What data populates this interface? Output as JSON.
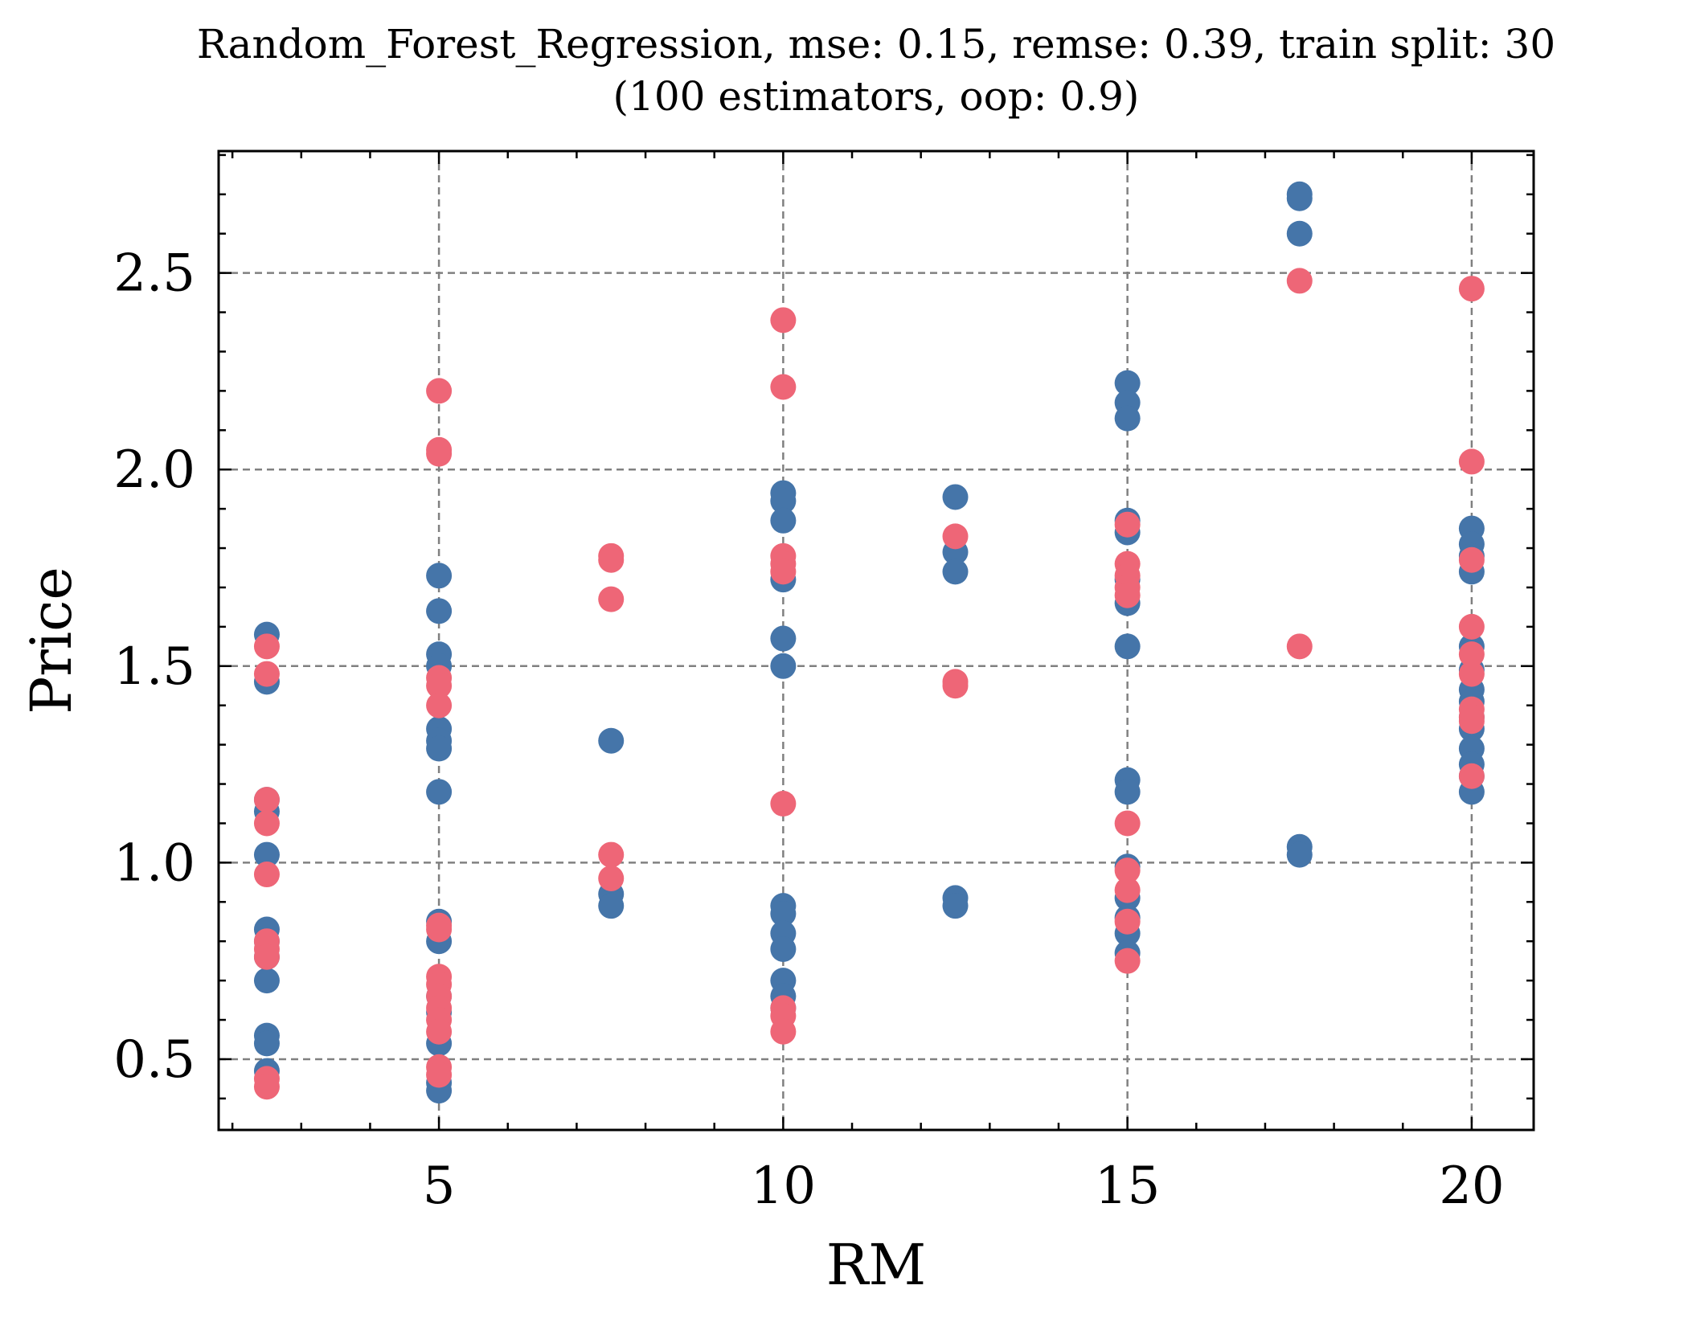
{
  "chart_data": {
    "type": "scatter",
    "title": "Random_Forest_Regression, mse: 0.15, remse: 0.39, train split: 30",
    "subtitle": "(100 estimators, oop: 0.9)",
    "xlabel": "RM",
    "ylabel": "Price",
    "xlim": [
      1.8,
      20.9
    ],
    "ylim": [
      0.32,
      2.81
    ],
    "x_ticks": [
      5,
      10,
      15,
      20
    ],
    "x_tick_labels": [
      "5",
      "10",
      "15",
      "20"
    ],
    "y_ticks": [
      0.5,
      1.0,
      1.5,
      2.0,
      2.5
    ],
    "y_tick_labels": [
      "0.5",
      "1.0",
      "1.5",
      "2.0",
      "2.5"
    ],
    "grid": true,
    "legend": "none",
    "series": [
      {
        "color": "#4575a9",
        "points": [
          [
            2.5,
            1.58
          ],
          [
            2.5,
            1.46
          ],
          [
            2.5,
            1.16
          ],
          [
            2.5,
            1.13
          ],
          [
            2.5,
            1.02
          ],
          [
            2.5,
            0.83
          ],
          [
            2.5,
            0.8
          ],
          [
            2.5,
            0.76
          ],
          [
            2.5,
            0.7
          ],
          [
            2.5,
            0.56
          ],
          [
            2.5,
            0.54
          ],
          [
            2.5,
            0.47
          ],
          [
            5,
            1.73
          ],
          [
            5,
            1.64
          ],
          [
            5,
            1.53
          ],
          [
            5,
            1.5
          ],
          [
            5,
            1.34
          ],
          [
            5,
            1.31
          ],
          [
            5,
            1.29
          ],
          [
            5,
            1.18
          ],
          [
            5,
            0.85
          ],
          [
            5,
            0.8
          ],
          [
            5,
            0.66
          ],
          [
            5,
            0.62
          ],
          [
            5,
            0.54
          ],
          [
            5,
            0.44
          ],
          [
            5,
            0.42
          ],
          [
            7.5,
            1.31
          ],
          [
            7.5,
            0.92
          ],
          [
            7.5,
            0.89
          ],
          [
            10,
            1.94
          ],
          [
            10,
            1.92
          ],
          [
            10,
            1.87
          ],
          [
            10,
            1.72
          ],
          [
            10,
            1.57
          ],
          [
            10,
            1.5
          ],
          [
            10,
            0.89
          ],
          [
            10,
            0.87
          ],
          [
            10,
            0.82
          ],
          [
            10,
            0.78
          ],
          [
            10,
            0.7
          ],
          [
            10,
            0.66
          ],
          [
            10,
            0.63
          ],
          [
            12.5,
            1.93
          ],
          [
            12.5,
            1.79
          ],
          [
            12.5,
            1.74
          ],
          [
            12.5,
            0.91
          ],
          [
            12.5,
            0.89
          ],
          [
            15,
            2.22
          ],
          [
            15,
            2.17
          ],
          [
            15,
            2.13
          ],
          [
            15,
            1.87
          ],
          [
            15,
            1.84
          ],
          [
            15,
            1.72
          ],
          [
            15,
            1.66
          ],
          [
            15,
            1.55
          ],
          [
            15,
            1.21
          ],
          [
            15,
            1.18
          ],
          [
            15,
            0.99
          ],
          [
            15,
            0.91
          ],
          [
            15,
            0.86
          ],
          [
            15,
            0.82
          ],
          [
            15,
            0.77
          ],
          [
            17.5,
            2.7
          ],
          [
            17.5,
            2.69
          ],
          [
            17.5,
            2.6
          ],
          [
            17.5,
            1.04
          ],
          [
            17.5,
            1.02
          ],
          [
            20,
            1.85
          ],
          [
            20,
            1.81
          ],
          [
            20,
            1.78
          ],
          [
            20,
            1.74
          ],
          [
            20,
            1.55
          ],
          [
            20,
            1.49
          ],
          [
            20,
            1.44
          ],
          [
            20,
            1.41
          ],
          [
            20,
            1.37
          ],
          [
            20,
            1.34
          ],
          [
            20,
            1.29
          ],
          [
            20,
            1.25
          ],
          [
            20,
            1.22
          ],
          [
            20,
            1.18
          ]
        ]
      },
      {
        "color": "#ee6677",
        "points": [
          [
            2.5,
            1.55
          ],
          [
            2.5,
            1.48
          ],
          [
            2.5,
            1.16
          ],
          [
            2.5,
            1.1
          ],
          [
            2.5,
            0.97
          ],
          [
            2.5,
            0.8
          ],
          [
            2.5,
            0.78
          ],
          [
            2.5,
            0.76
          ],
          [
            2.5,
            0.45
          ],
          [
            2.5,
            0.43
          ],
          [
            5,
            2.2
          ],
          [
            5,
            2.05
          ],
          [
            5,
            2.04
          ],
          [
            5,
            1.47
          ],
          [
            5,
            1.45
          ],
          [
            5,
            1.4
          ],
          [
            5,
            0.84
          ],
          [
            5,
            0.83
          ],
          [
            5,
            0.71
          ],
          [
            5,
            0.69
          ],
          [
            5,
            0.66
          ],
          [
            5,
            0.63
          ],
          [
            5,
            0.6
          ],
          [
            5,
            0.57
          ],
          [
            5,
            0.48
          ],
          [
            5,
            0.46
          ],
          [
            7.5,
            1.78
          ],
          [
            7.5,
            1.77
          ],
          [
            7.5,
            1.67
          ],
          [
            7.5,
            1.02
          ],
          [
            7.5,
            0.96
          ],
          [
            10,
            2.38
          ],
          [
            10,
            2.21
          ],
          [
            10,
            1.78
          ],
          [
            10,
            1.76
          ],
          [
            10,
            1.74
          ],
          [
            10,
            1.15
          ],
          [
            10,
            0.63
          ],
          [
            10,
            0.61
          ],
          [
            10,
            0.57
          ],
          [
            12.5,
            1.83
          ],
          [
            12.5,
            1.46
          ],
          [
            12.5,
            1.45
          ],
          [
            15,
            1.86
          ],
          [
            15,
            1.76
          ],
          [
            15,
            1.73
          ],
          [
            15,
            1.7
          ],
          [
            15,
            1.68
          ],
          [
            15,
            1.1
          ],
          [
            15,
            0.98
          ],
          [
            15,
            0.93
          ],
          [
            15,
            0.85
          ],
          [
            15,
            0.75
          ],
          [
            17.5,
            2.48
          ],
          [
            17.5,
            1.55
          ],
          [
            20,
            2.46
          ],
          [
            20,
            2.02
          ],
          [
            20,
            1.77
          ],
          [
            20,
            1.6
          ],
          [
            20,
            1.53
          ],
          [
            20,
            1.48
          ],
          [
            20,
            1.39
          ],
          [
            20,
            1.37
          ],
          [
            20,
            1.36
          ],
          [
            20,
            1.22
          ]
        ]
      }
    ]
  }
}
